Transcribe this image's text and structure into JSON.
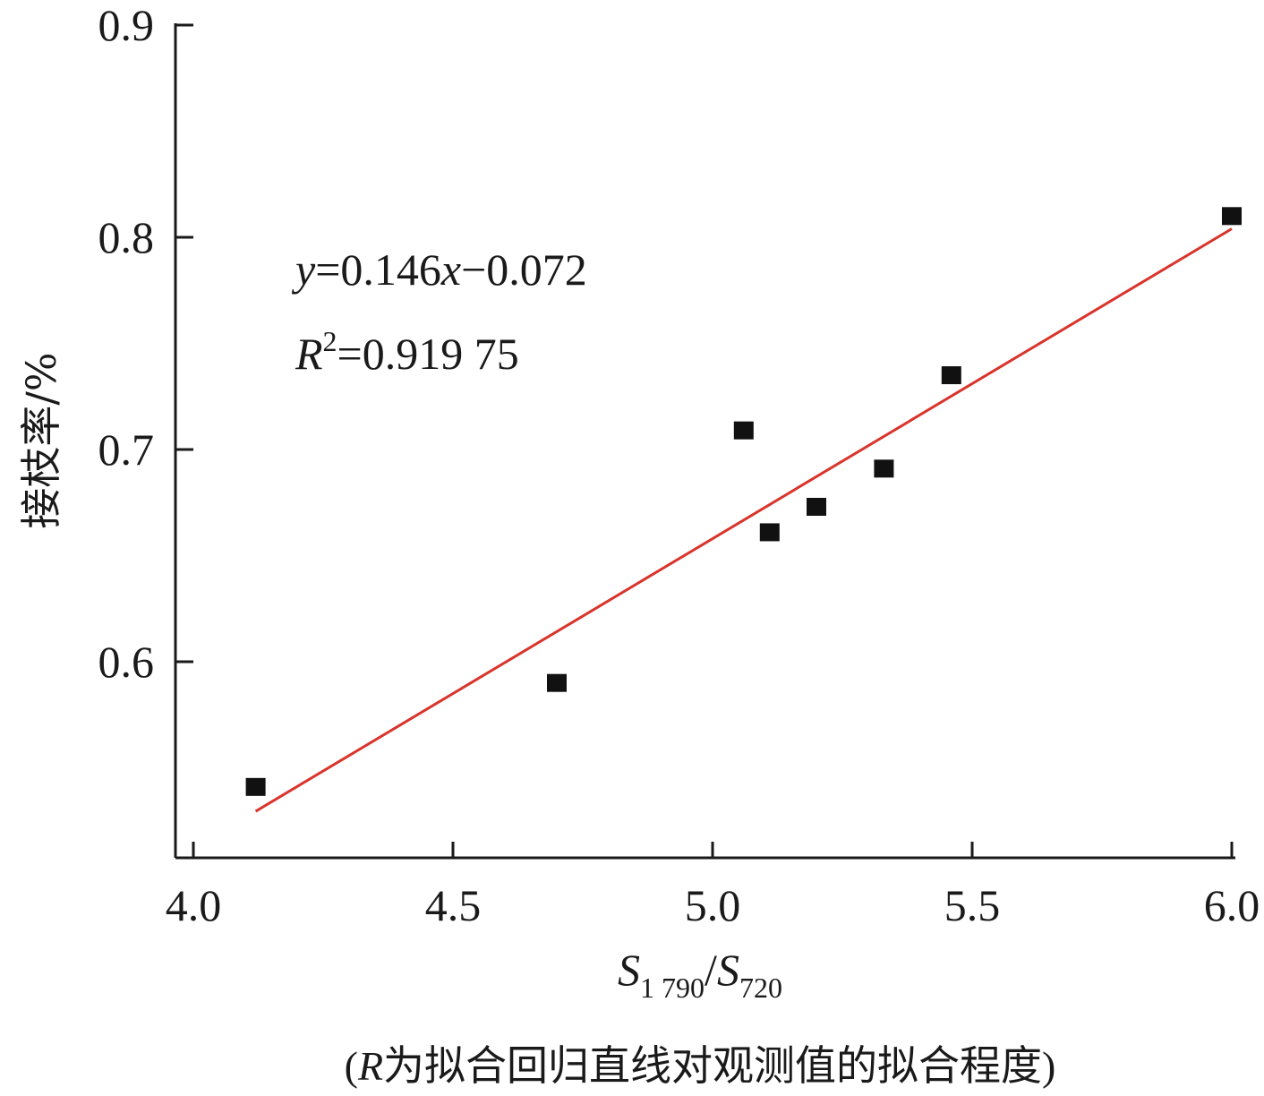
{
  "chart_data": {
    "type": "scatter",
    "xlim": [
      4.0,
      6.0
    ],
    "ylim": [
      0.5,
      0.9
    ],
    "xticks": [
      "4.0",
      "4.5",
      "5.0",
      "5.5",
      "6.0"
    ],
    "yticks": [
      "0.6",
      "0.7",
      "0.8",
      "0.9"
    ],
    "points": [
      {
        "x": 4.12,
        "y": 0.541
      },
      {
        "x": 4.7,
        "y": 0.59
      },
      {
        "x": 5.06,
        "y": 0.709
      },
      {
        "x": 5.11,
        "y": 0.661
      },
      {
        "x": 5.2,
        "y": 0.673
      },
      {
        "x": 5.33,
        "y": 0.691
      },
      {
        "x": 5.46,
        "y": 0.735
      },
      {
        "x": 6.0,
        "y": 0.81
      }
    ],
    "fit_line": {
      "x_start": 4.12,
      "x_end": 6.0,
      "slope": 0.146,
      "intercept": -0.072
    },
    "equation": {
      "y_var": "y",
      "rest": "=0.146",
      "x_var": "x",
      "tail": "−0.072"
    },
    "r_squared": {
      "R": "R",
      "sup": "2",
      "value": "=0.919 75"
    },
    "xlabel": {
      "s1": "S",
      "sub1": "1 790",
      "slash": "/",
      "s2": "S",
      "sub2": "720"
    },
    "ylabel": "接枝率/%",
    "caption": {
      "open": "(",
      "R": "R",
      "text": "为拟合回归直线对观测值的拟合程度)"
    },
    "colors": {
      "line": "#d9342b",
      "marker": "#111111",
      "axis": "#1a1a1a"
    }
  }
}
